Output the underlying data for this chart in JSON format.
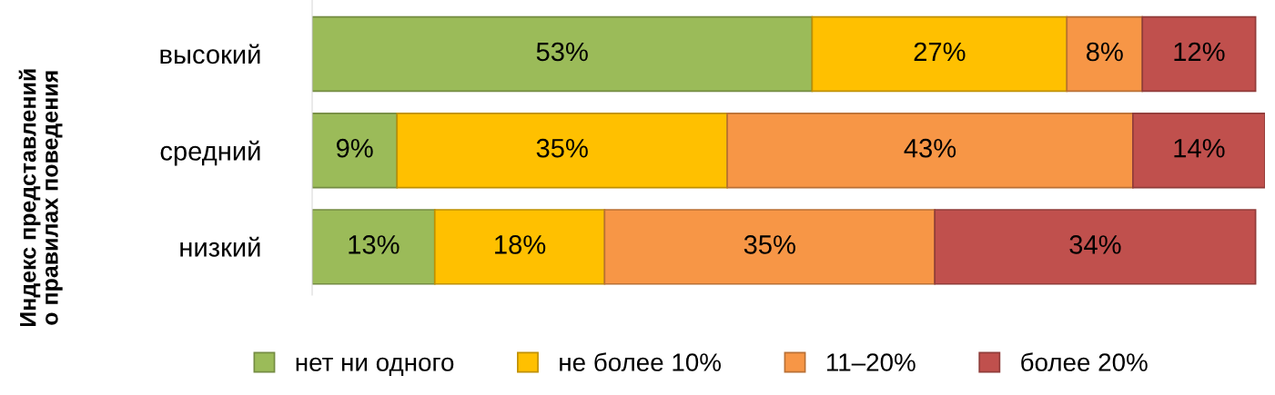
{
  "chart_data": {
    "type": "bar",
    "orientation": "horizontal",
    "stacked": true,
    "ylabel": "Индекс представлений\nо правилах поведения",
    "categories": [
      "высокий",
      "средний",
      "низкий"
    ],
    "series": [
      {
        "name": "нет ни одного",
        "color": "#9bbb59",
        "values": [
          53,
          9,
          13
        ],
        "value_labels": [
          "53%",
          "9%",
          "13%"
        ]
      },
      {
        "name": "не более 10%",
        "color": "#ffc000",
        "values": [
          27,
          35,
          18
        ],
        "value_labels": [
          "27%",
          "35%",
          "18%"
        ]
      },
      {
        "name": "11–20%",
        "color": "#f79646",
        "values": [
          8,
          43,
          35
        ],
        "value_labels": [
          "8%",
          "43%",
          "35%"
        ]
      },
      {
        "name": "более 20%",
        "color": "#c0504d",
        "values": [
          12,
          14,
          34
        ],
        "value_labels": [
          "12%",
          "14%",
          "34%"
        ]
      }
    ],
    "legend": "bottom",
    "grid": false
  }
}
